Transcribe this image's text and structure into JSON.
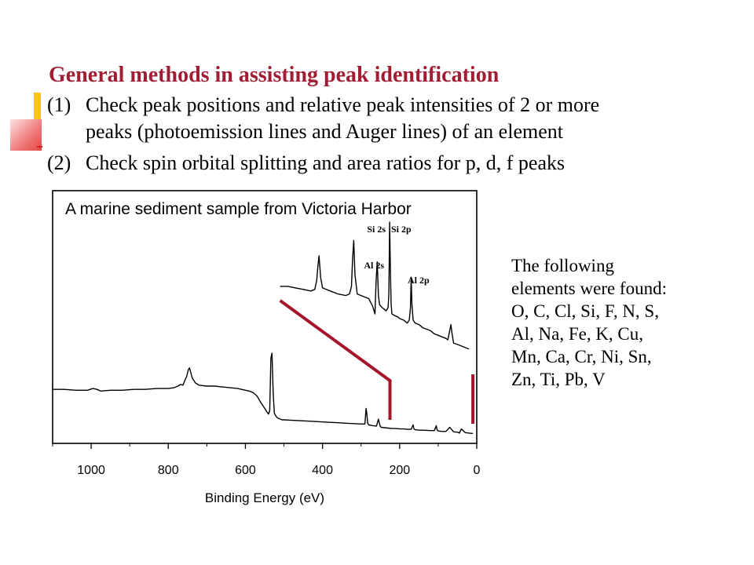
{
  "slide": {
    "title": "General methods in assisting peak identification",
    "items": [
      {
        "num": "(1)",
        "lines": [
          "Check peak positions and relative peak intensities of 2 or more",
          "peaks (photoemission lines and Auger lines) of an element"
        ]
      },
      {
        "num": "(2)",
        "lines": [
          "Check spin orbital splitting and area ratios for p, d, f peaks"
        ]
      }
    ],
    "side_note": [
      "The following",
      "elements were found:",
      "O, C, Cl, Si, F, N, S,",
      "Al, Na, Fe, K, Cu,",
      "Mn, Ca, Cr, Ni, Sn,",
      "Zn, Ti, Pb, V"
    ]
  },
  "colors": {
    "title": "#a01d33",
    "overlay_line": "#a5162c",
    "spectrum": "#000000",
    "deco_yellow": "#f7c700",
    "deco_red": "#e64545"
  },
  "chart_data": {
    "type": "line",
    "title": "A marine sediment sample from Victoria Harbor",
    "xlabel": "Binding Energy (eV)",
    "ylabel": "",
    "x_reversed": true,
    "xlim": [
      1100,
      0
    ],
    "ylim": [
      0,
      100
    ],
    "x_ticks": [
      1000,
      800,
      600,
      400,
      200,
      0
    ],
    "grid": false,
    "series": [
      {
        "x": [
          1100,
          1070,
          1040,
          1010,
          995,
          985,
          975,
          950,
          920,
          890,
          860,
          830,
          800,
          785,
          775,
          768,
          762,
          756,
          752,
          748,
          745,
          742,
          738,
          730,
          720,
          700,
          680,
          660,
          640,
          620,
          600,
          590,
          580,
          570,
          560,
          550,
          545,
          540,
          537,
          534,
          531,
          528,
          525,
          520,
          515,
          510,
          505,
          500,
          480,
          460,
          440,
          420,
          400,
          380,
          360,
          340,
          320,
          300,
          290,
          287,
          285,
          283,
          280,
          270,
          260,
          255,
          252,
          250,
          248,
          240,
          230,
          220,
          210,
          200,
          190,
          180,
          170,
          165,
          163,
          160,
          150,
          140,
          120,
          110,
          105,
          103,
          100,
          90,
          80,
          70,
          60,
          50,
          45,
          40,
          30,
          20,
          10
        ],
        "y": [
          56,
          56,
          55,
          55,
          57,
          56,
          54,
          55,
          55,
          56,
          56,
          57,
          57,
          58,
          60,
          62,
          61,
          68,
          72,
          80,
          82,
          77,
          70,
          64,
          61,
          60,
          60,
          59,
          58,
          57,
          55,
          54,
          52,
          48,
          40,
          33,
          29,
          26,
          30,
          94,
          100,
          52,
          27,
          23,
          21,
          20,
          19,
          19,
          18.5,
          18,
          17.5,
          17,
          16.5,
          16,
          15.5,
          15,
          14.5,
          14,
          14,
          33,
          26,
          15,
          13,
          12,
          11.5,
          20,
          14,
          11,
          10,
          9.5,
          9,
          8.5,
          8.5,
          8,
          8,
          7.5,
          7.5,
          13,
          8,
          7,
          6.5,
          6.5,
          6,
          6,
          12,
          7,
          5.5,
          5,
          5,
          10,
          4.5,
          4,
          3,
          8,
          3.5,
          3,
          2.5
        ]
      },
      {
        "x": [
          510,
          490,
          470,
          450,
          430,
          420,
          415,
          412,
          409,
          405,
          400,
          380,
          360,
          340,
          330,
          325,
          322,
          319,
          316,
          310,
          300,
          290,
          280,
          270,
          264,
          261,
          258,
          255,
          252,
          245,
          240,
          235,
          230,
          228,
          226,
          224,
          222,
          220,
          214,
          205,
          200,
          190,
          180,
          175,
          172,
          170,
          168,
          165,
          160,
          150,
          140,
          130,
          120,
          110,
          100,
          90,
          80,
          75,
          70,
          67,
          64,
          60,
          50,
          40,
          30,
          20
        ],
        "y": [
          58,
          58,
          57,
          56,
          55,
          56,
          62,
          71,
          78,
          64,
          57,
          55,
          53,
          52,
          53,
          58,
          76,
          88,
          66,
          53,
          52,
          51,
          50,
          45,
          40,
          62,
          74,
          52,
          46,
          44,
          43,
          42,
          44,
          53,
          100,
          70,
          46,
          40,
          39,
          38,
          37,
          36,
          34,
          36,
          44,
          64,
          46,
          36,
          34,
          33,
          31,
          30,
          29,
          27,
          26,
          25,
          24,
          23,
          29,
          33,
          27,
          21,
          20,
          19,
          18,
          17
        ]
      }
    ],
    "annotations": [
      "Si 2s",
      "Al 2s",
      "Si 2p",
      "Al 2p"
    ],
    "overlay_lines": [
      {
        "x": [
          510,
          225,
          225
        ]
      },
      {
        "x": [
          10,
          10
        ]
      }
    ]
  }
}
